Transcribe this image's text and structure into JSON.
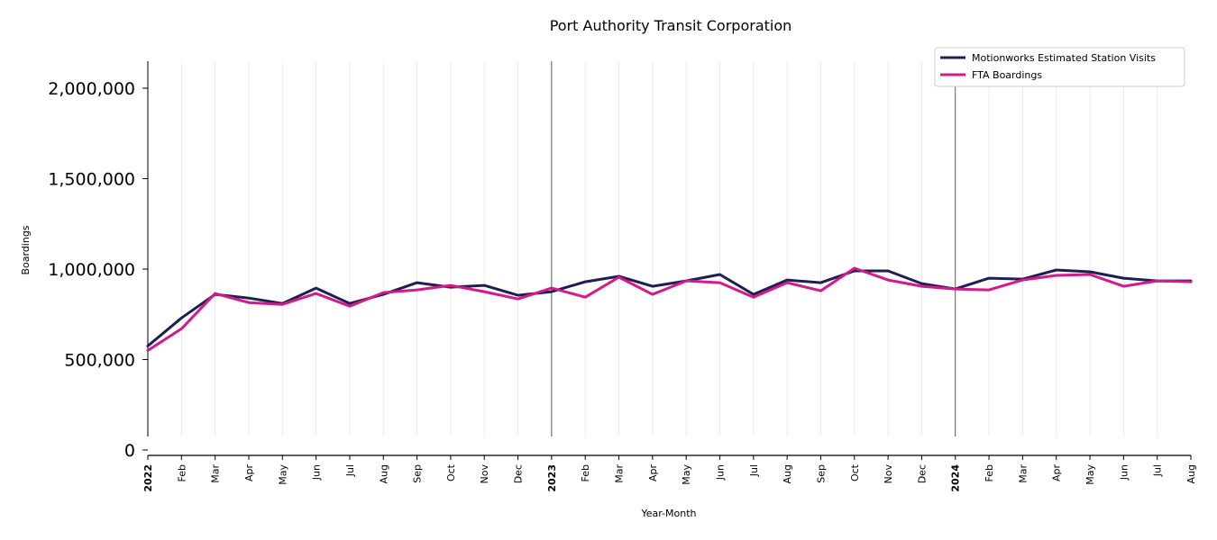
{
  "chart_data": {
    "type": "line",
    "title": "Port Authority Transit Corporation",
    "xlabel": "Year-Month",
    "ylabel": "Boardings",
    "ylim": [
      0,
      2150000
    ],
    "yticks": [
      0,
      500000,
      1000000,
      1500000,
      2000000
    ],
    "ytick_labels": [
      "0",
      "500,000",
      "1,000,000",
      "1,500,000",
      "2,000,000"
    ],
    "x": [
      "2022",
      "Feb",
      "Mar",
      "Apr",
      "May",
      "Jun",
      "Jul",
      "Aug",
      "Sep",
      "Oct",
      "Nov",
      "Dec",
      "2023",
      "Feb",
      "Mar",
      "Apr",
      "May",
      "Jun",
      "Jul",
      "Aug",
      "Sep",
      "Oct",
      "Nov",
      "Dec",
      "2024",
      "Feb",
      "Mar",
      "Apr",
      "May",
      "Jun",
      "Jul",
      "Aug"
    ],
    "year_markers": [
      "2023",
      "2024"
    ],
    "grid": "vertical",
    "legend_position": "top-right",
    "series": [
      {
        "name": "Motionworks Estimated Station Visits",
        "color": "#1c1f4f",
        "values": [
          575000,
          730000,
          860000,
          840000,
          810000,
          895000,
          810000,
          860000,
          925000,
          900000,
          910000,
          855000,
          875000,
          930000,
          960000,
          905000,
          935000,
          970000,
          860000,
          940000,
          925000,
          990000,
          990000,
          920000,
          890000,
          950000,
          945000,
          995000,
          985000,
          950000,
          935000,
          935000
        ]
      },
      {
        "name": "FTA Boardings",
        "color": "#d4198a",
        "values": [
          550000,
          670000,
          865000,
          815000,
          805000,
          865000,
          795000,
          870000,
          885000,
          910000,
          875000,
          835000,
          895000,
          845000,
          955000,
          860000,
          935000,
          925000,
          845000,
          925000,
          880000,
          1005000,
          940000,
          905000,
          890000,
          885000,
          940000,
          965000,
          970000,
          905000,
          935000,
          930000
        ]
      }
    ]
  }
}
